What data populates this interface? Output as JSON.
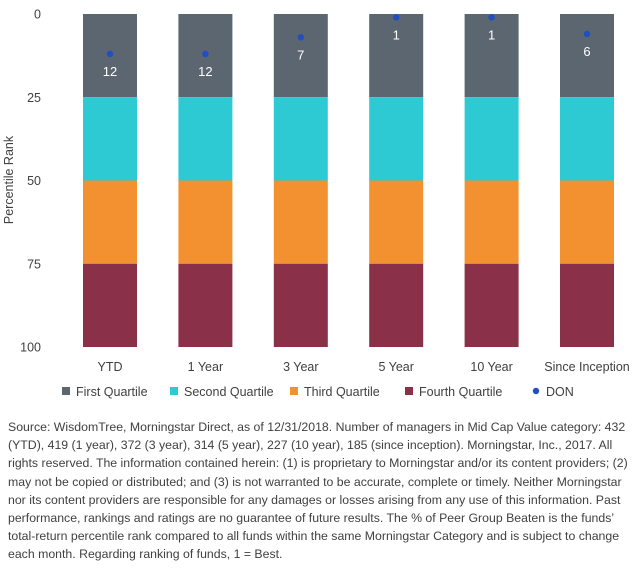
{
  "chart_data": {
    "type": "bar",
    "stacked": true,
    "categories": [
      "YTD",
      "1 Year",
      "3 Year",
      "5 Year",
      "10 Year",
      "Since Inception"
    ],
    "ylabel": "Percentile Rank",
    "ylim": [
      0,
      100
    ],
    "y_inverted": true,
    "yticks": [
      0,
      25,
      50,
      75,
      100
    ],
    "grid": false,
    "legend_position": "bottom",
    "series": [
      {
        "name": "First Quartile",
        "values": [
          25,
          25,
          25,
          25,
          25,
          25
        ],
        "color": "#5b6670"
      },
      {
        "name": "Second Quartile",
        "values": [
          25,
          25,
          25,
          25,
          25,
          25
        ],
        "color": "#2ecad3"
      },
      {
        "name": "Third Quartile",
        "values": [
          25,
          25,
          25,
          25,
          25,
          25
        ],
        "color": "#f39131"
      },
      {
        "name": "Fourth Quartile",
        "values": [
          25,
          25,
          25,
          25,
          25,
          25
        ],
        "color": "#8b3049"
      }
    ],
    "points": {
      "name": "DON",
      "type": "scatter",
      "values": [
        12,
        12,
        7,
        1,
        1,
        6
      ],
      "labels": [
        "12",
        "12",
        "7",
        "1",
        "1",
        "6"
      ],
      "color": "#1f4fc1"
    }
  },
  "source_note": "Source: WisdomTree, Morningstar Direct, as of 12/31/2018. Number of managers in Mid Cap Value category: 432 (YTD), 419 (1 year), 372 (3 year), 314 (5 year), 227 (10 year), 185 (since inception). Morningstar, Inc., 2017. All rights reserved. The information contained herein: (1) is proprietary to Morningstar and/or its content providers; (2) may not be copied or distributed; and (3) is not warranted to be accurate, complete or timely. Neither Morningstar nor its content providers are responsible for any damages or losses arising from any use of this information. Past performance, rankings and ratings are no guarantee of future results. The % of Peer Group Beaten is the funds’ total-return percentile rank compared to all funds within the same Morningstar Category and is subject to change each month. Regarding ranking of funds, 1 = Best."
}
